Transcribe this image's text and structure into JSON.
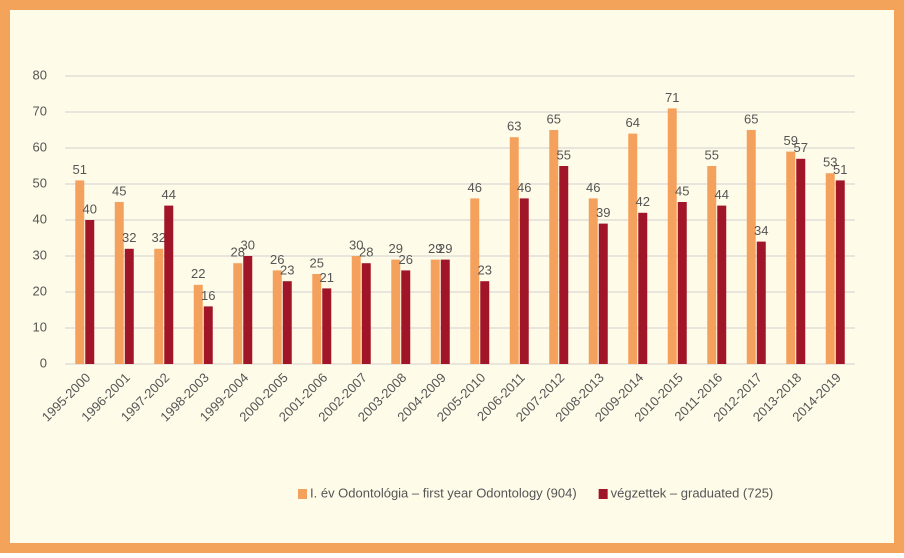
{
  "chart_data": {
    "type": "bar",
    "categories": [
      "1995-2000",
      "1996-2001",
      "1997-2002",
      "1998-2003",
      "1999-2004",
      "2000-2005",
      "2001-2006",
      "2002-2007",
      "2003-2008",
      "2004-2009",
      "2005-2010",
      "2006-2011",
      "2007-2012",
      "2008-2013",
      "2009-2014",
      "2010-2015",
      "2011-2016",
      "2012-2017",
      "2013-2018",
      "2014-2019"
    ],
    "series": [
      {
        "name": "I. év Odontológia – first year Odontology (904)",
        "color": "#f5a15e",
        "values": [
          51,
          45,
          32,
          22,
          28,
          26,
          25,
          30,
          29,
          29,
          46,
          63,
          65,
          46,
          64,
          71,
          55,
          65,
          59,
          53
        ]
      },
      {
        "name": "végzettek – graduated (725)",
        "color": "#a01628",
        "values": [
          40,
          32,
          44,
          16,
          30,
          23,
          21,
          28,
          26,
          29,
          23,
          46,
          55,
          39,
          42,
          45,
          44,
          34,
          57,
          51
        ]
      }
    ],
    "ylim": [
      0,
      80
    ],
    "yticks": [
      0,
      10,
      20,
      30,
      40,
      50,
      60,
      70,
      80
    ],
    "grid": true,
    "legend": "bottom"
  }
}
